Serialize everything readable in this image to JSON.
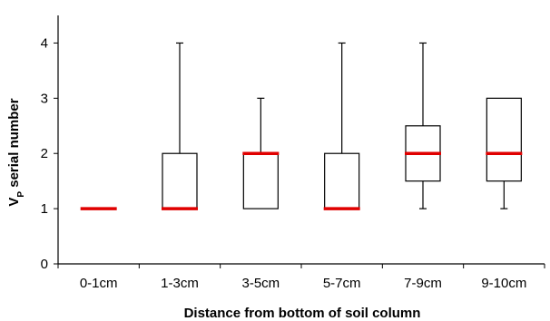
{
  "chart_data": {
    "type": "box",
    "title": "",
    "xlabel": "Distance from bottom of soil column",
    "ylabel_main": "V",
    "ylabel_sub": "P",
    "ylabel_rest": " serial number",
    "ylim": [
      0,
      4.5
    ],
    "y_ticks": [
      "0",
      "1",
      "2",
      "3",
      "4"
    ],
    "grid": false,
    "legend": "none",
    "categories": [
      "0-1cm",
      "1-3cm",
      "3-5cm",
      "5-7cm",
      "7-9cm",
      "9-10cm"
    ],
    "boxes": [
      {
        "category": "0-1cm",
        "min": 1,
        "q1": 1,
        "median": 1,
        "q3": 1,
        "max": 1
      },
      {
        "category": "1-3cm",
        "min": 1,
        "q1": 1,
        "median": 1,
        "q3": 2,
        "max": 4
      },
      {
        "category": "3-5cm",
        "min": 1,
        "q1": 1,
        "median": 2,
        "q3": 2,
        "max": 3
      },
      {
        "category": "5-7cm",
        "min": 1,
        "q1": 1,
        "median": 1,
        "q3": 2,
        "max": 4
      },
      {
        "category": "7-9cm",
        "min": 1,
        "q1": 1.5,
        "median": 2,
        "q3": 2.5,
        "max": 4
      },
      {
        "category": "9-10cm",
        "min": 1,
        "q1": 1.5,
        "median": 2,
        "q3": 3,
        "max": 3
      }
    ],
    "colors": {
      "median": "#e00000",
      "box": "#000000",
      "axis": "#000000"
    }
  }
}
